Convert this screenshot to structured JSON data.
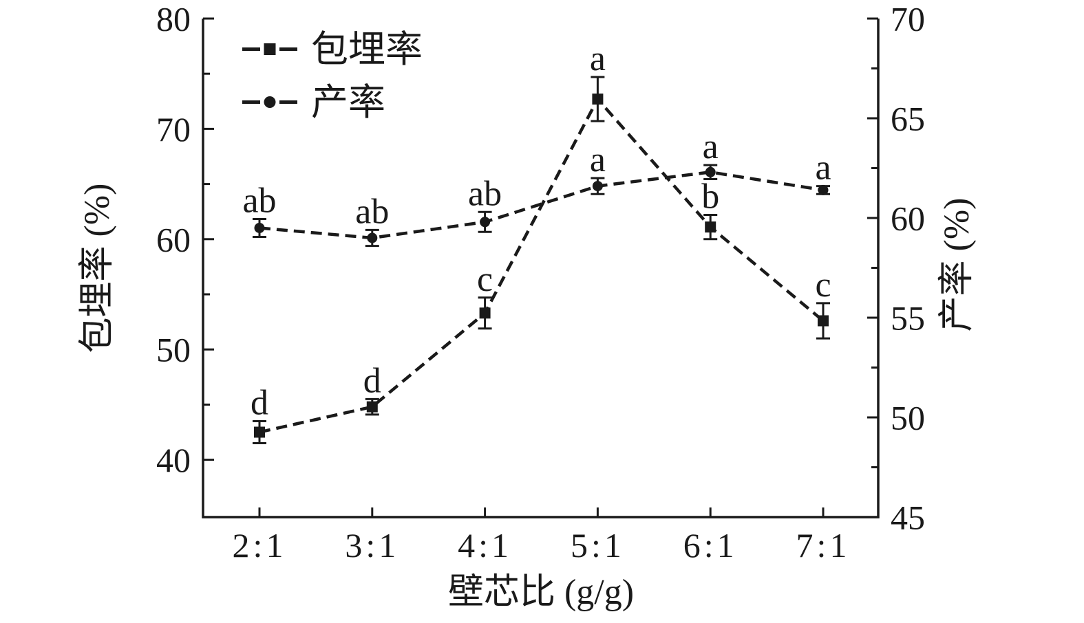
{
  "figure": {
    "background": "#ffffff"
  },
  "chart_data": {
    "type": "line",
    "title": "",
    "xlabel": "壁芯比 (g/g)",
    "categories": [
      "2:1",
      "3:1",
      "4:1",
      "5:1",
      "6:1",
      "7:1"
    ],
    "left_axis": {
      "label": "包埋率 (%)",
      "min": 35,
      "max": 80,
      "major_ticks": [
        40,
        50,
        60,
        70,
        80
      ],
      "minor_ticks": [
        45,
        55,
        65,
        75
      ]
    },
    "right_axis": {
      "label": "产率 (%)",
      "min": 45,
      "max": 70,
      "major_ticks": [
        45,
        50,
        55,
        60,
        65,
        70
      ],
      "minor_ticks": [
        47.5,
        52.5,
        57.5,
        62.5,
        67.5
      ]
    },
    "series": [
      {
        "name": "包埋率",
        "axis": "left",
        "marker": "square",
        "line_style": "dashed",
        "values": [
          42.5,
          44.8,
          53.3,
          72.7,
          61.1,
          52.6
        ],
        "errors": [
          1.0,
          0.7,
          1.4,
          2.0,
          1.1,
          1.6
        ],
        "sig_letters": [
          "d",
          "d",
          "c",
          "a",
          "b",
          "c"
        ]
      },
      {
        "name": "产率",
        "axis": "right",
        "marker": "circle",
        "line_style": "dashed",
        "values": [
          59.5,
          59.0,
          59.8,
          61.6,
          62.3,
          61.4
        ],
        "errors": [
          0.45,
          0.4,
          0.5,
          0.4,
          0.35,
          0.2
        ],
        "sig_letters": [
          "ab",
          "ab",
          "ab",
          "a",
          "a",
          "a"
        ]
      }
    ],
    "legend": {
      "position": "top-left-inside",
      "items": [
        {
          "label": "包埋率",
          "marker": "square"
        },
        {
          "label": "产率",
          "marker": "circle"
        }
      ]
    },
    "grid": false,
    "colors": {
      "foreground": "#1a1a1a",
      "background": "#ffffff"
    }
  }
}
